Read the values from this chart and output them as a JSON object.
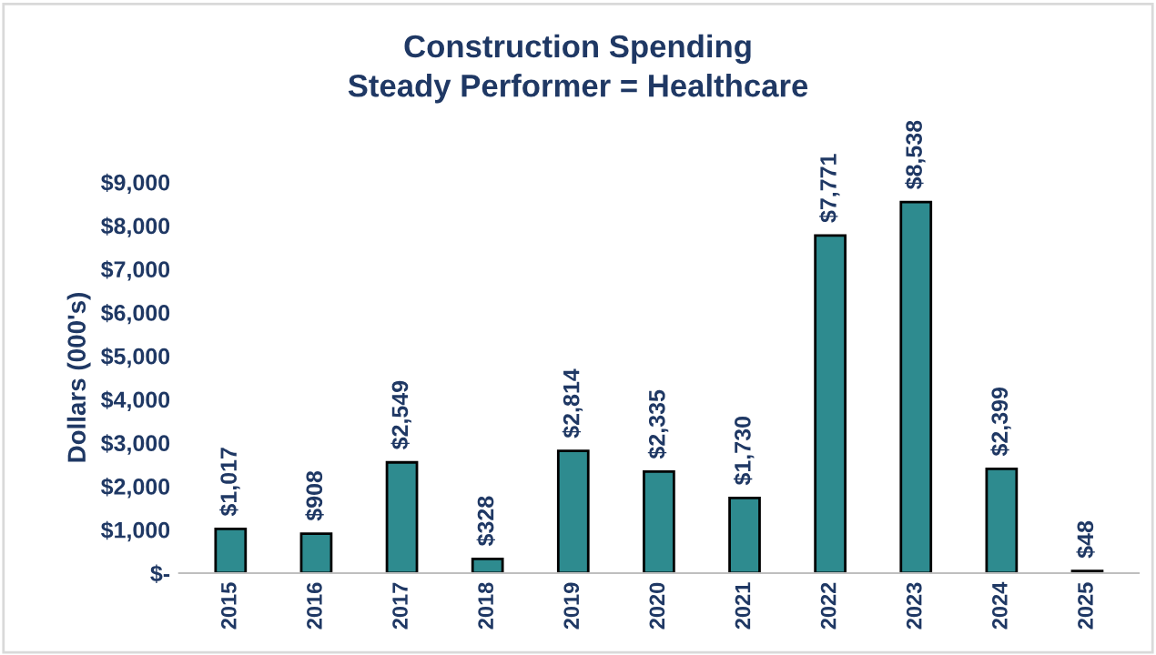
{
  "chart_data": {
    "type": "bar",
    "title": "Construction Spending",
    "subtitle": "Steady Performer = Healthcare",
    "ylabel": "Dollars (000's)",
    "categories": [
      "2015",
      "2016",
      "2017",
      "2018",
      "2019",
      "2020",
      "2021",
      "2022",
      "2023",
      "2024",
      "2025"
    ],
    "values": [
      1017,
      908,
      2549,
      328,
      2814,
      2335,
      1730,
      7771,
      8538,
      2399,
      48
    ],
    "value_labels": [
      "$1,017",
      "$908",
      "$2,549",
      "$328",
      "$2,814",
      "$2,335",
      "$1,730",
      "$7,771",
      "$8,538",
      "$2,399",
      "$48"
    ],
    "color": "#2e8b8f",
    "ylim": [
      0,
      9000
    ],
    "yticks": [
      {
        "value": 0,
        "label": "$-"
      },
      {
        "value": 1000,
        "label": "$1,000"
      },
      {
        "value": 2000,
        "label": "$2,000"
      },
      {
        "value": 3000,
        "label": "$3,000"
      },
      {
        "value": 4000,
        "label": "$4,000"
      },
      {
        "value": 5000,
        "label": "$5,000"
      },
      {
        "value": 6000,
        "label": "$6,000"
      },
      {
        "value": 7000,
        "label": "$7,000"
      },
      {
        "value": 8000,
        "label": "$8,000"
      },
      {
        "value": 9000,
        "label": "$9,000"
      }
    ],
    "grid": false,
    "legend": false
  }
}
